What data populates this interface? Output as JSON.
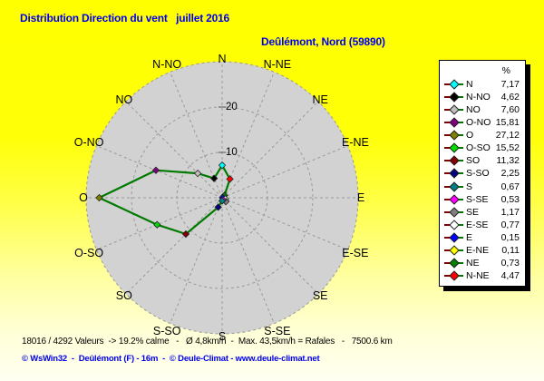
{
  "title": "Distribution Direction du vent   juillet 2016",
  "subtitle": "Deûlémont, Nord (59890)",
  "status_line": "18016 / 4292 Valeurs  -> 19.2% calme   -   Ø 4,8km/h  -  Max. 43,5km/h = Rafales   -   7500.6 km",
  "footer": "© WsWin32  -  Deûlémont (F) - 16m  -  © Deule-Climat - www.deule-climat.net",
  "colors": {
    "title_text": "#0000ee",
    "footer_text": "#0000ee",
    "plot_fill": "#d2d2d2",
    "grid": "#999999",
    "tick": "#555555",
    "polygon_line": "#007a00",
    "marker_outline": "#222222",
    "legend_line_left": "#800000",
    "legend_line_right": "#007800"
  },
  "legend": {
    "header": "%",
    "items": [
      {
        "label": "N",
        "value": "7,17",
        "color": "#00ffff"
      },
      {
        "label": "N-NO",
        "value": "4,62",
        "color": "#000000"
      },
      {
        "label": "NO",
        "value": "7,60",
        "color": "#c0c0c0"
      },
      {
        "label": "O-NO",
        "value": "15,81",
        "color": "#800080"
      },
      {
        "label": "O",
        "value": "27,12",
        "color": "#808000"
      },
      {
        "label": "O-SO",
        "value": "15,52",
        "color": "#00dd00"
      },
      {
        "label": "SO",
        "value": "11,32",
        "color": "#800000"
      },
      {
        "label": "S-SO",
        "value": "2,25",
        "color": "#000080"
      },
      {
        "label": "S",
        "value": "0,67",
        "color": "#008080"
      },
      {
        "label": "S-SE",
        "value": "0,53",
        "color": "#ff00ff"
      },
      {
        "label": "SE",
        "value": "1,17",
        "color": "#808080"
      },
      {
        "label": "E-SE",
        "value": "0,77",
        "color": "#ffffff"
      },
      {
        "label": "E",
        "value": "0,15",
        "color": "#0000ff"
      },
      {
        "label": "E-NE",
        "value": "0,11",
        "color": "#ffff00"
      },
      {
        "label": "NE",
        "value": "0,73",
        "color": "#008000"
      },
      {
        "label": "N-NE",
        "value": "4,47",
        "color": "#ff0000"
      }
    ]
  },
  "chart_data": {
    "type": "radar",
    "subtype": "wind-rose-distribution",
    "title": "Distribution Direction du vent juillet 2016",
    "units": "%",
    "categories_clockwise_from_north": [
      "N",
      "N-NE",
      "NE",
      "E-NE",
      "E",
      "E-SE",
      "SE",
      "S-SE",
      "S",
      "S-SO",
      "SO",
      "O-SO",
      "O",
      "O-NO",
      "NO",
      "N-NO"
    ],
    "values": [
      7.17,
      4.47,
      0.73,
      0.11,
      0.15,
      0.77,
      1.17,
      0.53,
      0.67,
      2.25,
      11.32,
      15.52,
      27.12,
      15.81,
      7.6,
      4.62
    ],
    "point_colors": {
      "N": "#00ffff",
      "N-NE": "#ff0000",
      "NE": "#008000",
      "E-NE": "#ffff00",
      "E": "#0000ff",
      "E-SE": "#ffffff",
      "SE": "#808080",
      "S-SE": "#ff00ff",
      "S": "#008080",
      "S-SO": "#000080",
      "SO": "#800000",
      "O-SO": "#00dd00",
      "O": "#808000",
      "O-NO": "#800080",
      "NO": "#c0c0c0",
      "N-NO": "#000000"
    },
    "radial_ticks": [
      10,
      20
    ],
    "rmax": 30,
    "grid": "dashed",
    "legend_position": "right"
  }
}
